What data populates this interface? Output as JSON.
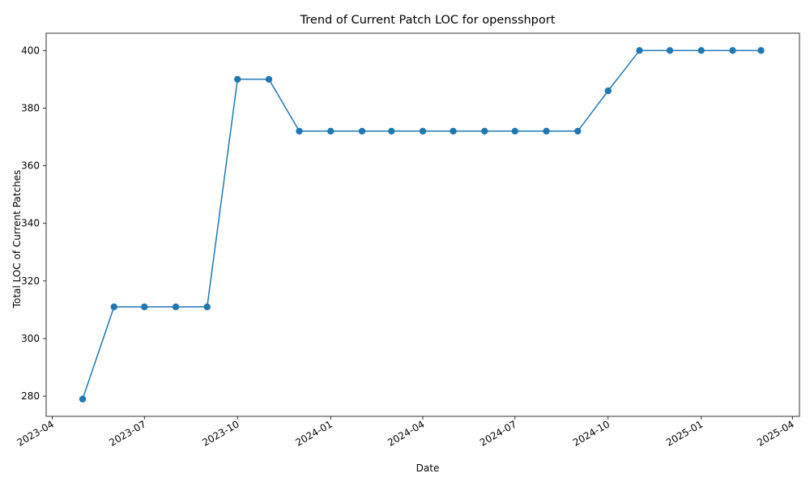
{
  "chart_data": {
    "type": "line",
    "title": "Trend of Current Patch LOC for opensshport",
    "xlabel": "Date",
    "ylabel": "Total LOC of Current Patches",
    "color": "#1f77b4",
    "marker": "circle",
    "grid": false,
    "x_ticks": [
      "2023-04",
      "2023-07",
      "2023-10",
      "2024-01",
      "2024-04",
      "2024-07",
      "2024-10",
      "2025-01",
      "2025-04"
    ],
    "y_ticks": [
      280,
      300,
      320,
      340,
      360,
      380,
      400
    ],
    "xlim": [
      "2023-03-26",
      "2025-04-08"
    ],
    "ylim": [
      273,
      406
    ],
    "series": [
      {
        "x": [
          "2023-05-01",
          "2023-06-01",
          "2023-07-01",
          "2023-08-01",
          "2023-09-01",
          "2023-10-01",
          "2023-11-01",
          "2023-12-01",
          "2024-01-01",
          "2024-02-01",
          "2024-03-01",
          "2024-04-01",
          "2024-05-01",
          "2024-06-01",
          "2024-07-01",
          "2024-08-01",
          "2024-09-01",
          "2024-10-01",
          "2024-11-01",
          "2024-12-01",
          "2025-01-01",
          "2025-02-01",
          "2025-03-01"
        ],
        "values": [
          279,
          311,
          311,
          311,
          311,
          390,
          390,
          372,
          372,
          372,
          372,
          372,
          372,
          372,
          372,
          372,
          372,
          386,
          400,
          400,
          400,
          400,
          400
        ]
      }
    ]
  }
}
